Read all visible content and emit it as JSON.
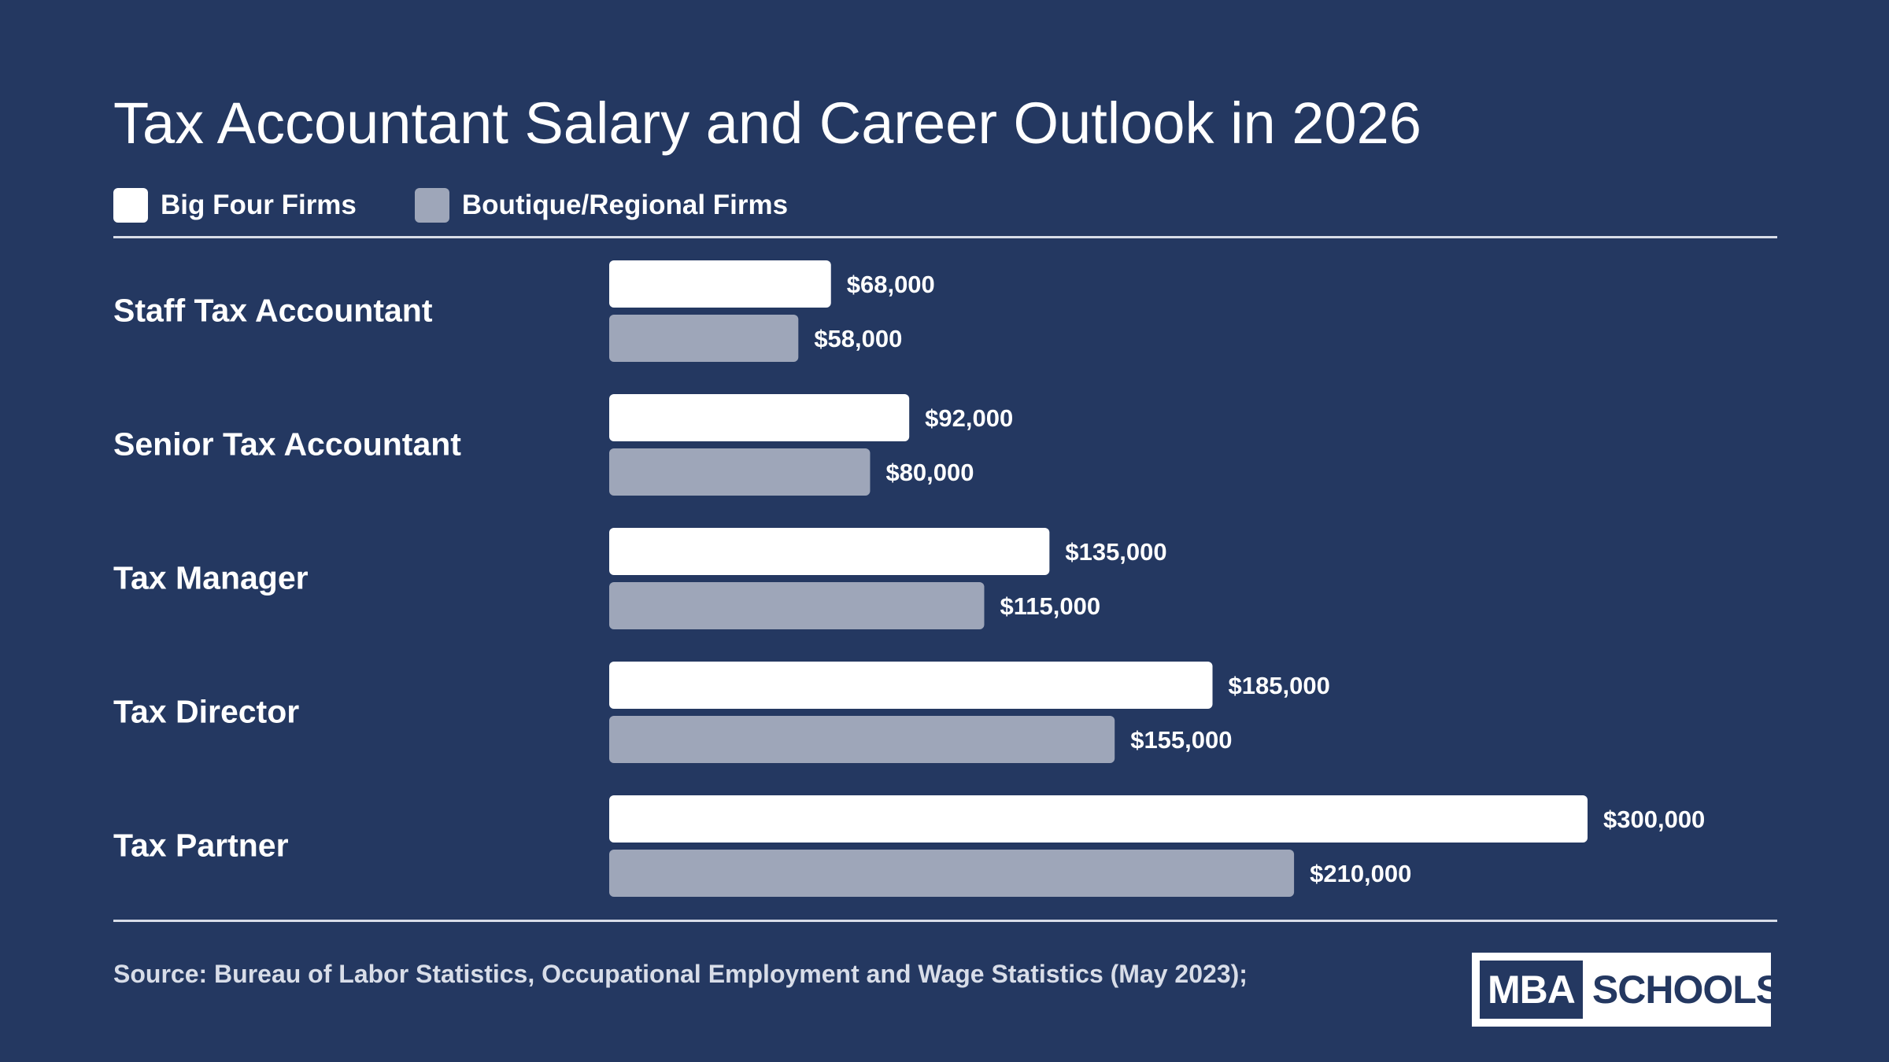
{
  "title": "Tax Accountant Salary and Career Outlook in 2026",
  "legend": [
    {
      "label": "Big Four Firms",
      "color": "#ffffff"
    },
    {
      "label": "Boutique/Regional Firms",
      "color": "#9ea6b9"
    }
  ],
  "source": "Source: Bureau of Labor Statistics, Occupational Employment and Wage Statistics (May 2023);",
  "logo": {
    "left": "MBA",
    "right": "SCHOOLS"
  },
  "colors": {
    "background": "#243861",
    "big_four": "#ffffff",
    "boutique": "#9ea6b9"
  },
  "chart_data": {
    "type": "bar",
    "orientation": "horizontal",
    "categories": [
      "Staff Tax Accountant",
      "Senior Tax Accountant",
      "Tax Manager",
      "Tax Director",
      "Tax Partner"
    ],
    "series": [
      {
        "name": "Big Four Firms",
        "values": [
          68000,
          92000,
          135000,
          185000,
          300000
        ],
        "labels": [
          "$68,000",
          "$92,000",
          "$135,000",
          "$185,000",
          "$300,000"
        ]
      },
      {
        "name": "Boutique/Regional Firms",
        "values": [
          58000,
          80000,
          115000,
          155000,
          210000
        ],
        "labels": [
          "$58,000",
          "$80,000",
          "$115,000",
          "$155,000",
          "$210,000"
        ]
      }
    ],
    "xlim": [
      0,
      300000
    ],
    "grid": false,
    "legend_position": "top-left"
  }
}
